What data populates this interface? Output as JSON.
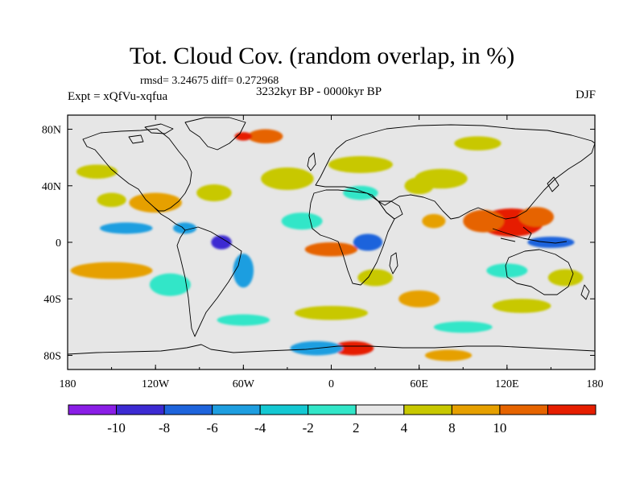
{
  "title": "Tot. Cloud Cov. (random overlap, in %)",
  "stats": "rmsd= 3.24675  diff= 0.272968",
  "experiment": "Expt = xQfVu-xqfua",
  "period": "3232kyr BP - 0000kyr BP",
  "season": "DJF",
  "map": {
    "projection": "cylindrical equidistant",
    "lon_range": [
      -180,
      180
    ],
    "lat_range": [
      -90,
      90
    ],
    "lon_ticks": [
      {
        "value": -180,
        "label": "180"
      },
      {
        "value": -120,
        "label": "120W"
      },
      {
        "value": -60,
        "label": "60W"
      },
      {
        "value": 0,
        "label": "0"
      },
      {
        "value": 60,
        "label": "60E"
      },
      {
        "value": 120,
        "label": "120E"
      },
      {
        "value": 180,
        "label": "180"
      }
    ],
    "lat_ticks": [
      {
        "value": 80,
        "label": "80N"
      },
      {
        "value": 40,
        "label": "40N"
      },
      {
        "value": 0,
        "label": "0"
      },
      {
        "value": -40,
        "label": "40S"
      },
      {
        "value": -80,
        "label": "80S"
      }
    ],
    "background_color": "#e6e6e6",
    "anomaly_patches": [
      {
        "lon": 123,
        "lat": 14,
        "rlon": 22,
        "rlat": 10,
        "class": 10
      },
      {
        "lon": 104,
        "lat": 15,
        "rlon": 14,
        "rlat": 8,
        "class": 9
      },
      {
        "lon": 140,
        "lat": 18,
        "rlon": 12,
        "rlat": 7,
        "class": 9
      },
      {
        "lon": 0,
        "lat": -5,
        "rlon": 18,
        "rlat": 5,
        "class": 9
      },
      {
        "lon": 15,
        "lat": -75,
        "rlon": 14,
        "rlat": 5,
        "class": 10
      },
      {
        "lon": -45,
        "lat": 75,
        "rlon": 12,
        "rlat": 5,
        "class": 9
      },
      {
        "lon": -60,
        "lat": 75,
        "rlon": 6,
        "rlat": 3,
        "class": 10
      },
      {
        "lon": -150,
        "lat": -20,
        "rlon": 28,
        "rlat": 6,
        "class": 8
      },
      {
        "lon": -120,
        "lat": 28,
        "rlon": 18,
        "rlat": 7,
        "class": 8
      },
      {
        "lon": -150,
        "lat": 30,
        "rlon": 10,
        "rlat": 5,
        "class": 7
      },
      {
        "lon": 70,
        "lat": 15,
        "rlon": 8,
        "rlat": 5,
        "class": 8
      },
      {
        "lon": 60,
        "lat": 40,
        "rlon": 10,
        "rlat": 6,
        "class": 7
      },
      {
        "lon": 60,
        "lat": -40,
        "rlon": 14,
        "rlat": 6,
        "class": 8
      },
      {
        "lon": 160,
        "lat": -25,
        "rlon": 12,
        "rlat": 6,
        "class": 7
      },
      {
        "lon": 80,
        "lat": -80,
        "rlon": 16,
        "rlat": 4,
        "class": 8
      },
      {
        "lon": -140,
        "lat": 10,
        "rlon": 18,
        "rlat": 4,
        "class": 3
      },
      {
        "lon": -100,
        "lat": 10,
        "rlon": 8,
        "rlat": 4,
        "class": 3
      },
      {
        "lon": -75,
        "lat": 0,
        "rlon": 7,
        "rlat": 5,
        "class": 1
      },
      {
        "lon": 25,
        "lat": 0,
        "rlon": 10,
        "rlat": 6,
        "class": 2
      },
      {
        "lon": 150,
        "lat": 0,
        "rlon": 16,
        "rlat": 4,
        "class": 2
      },
      {
        "lon": -10,
        "lat": -75,
        "rlon": 18,
        "rlat": 5,
        "class": 3
      },
      {
        "lon": -60,
        "lat": -20,
        "rlon": 7,
        "rlat": 12,
        "class": 3
      },
      {
        "lon": -110,
        "lat": -30,
        "rlon": 14,
        "rlat": 8,
        "class": 5
      },
      {
        "lon": -60,
        "lat": -55,
        "rlon": 18,
        "rlat": 4,
        "class": 5
      },
      {
        "lon": 20,
        "lat": 35,
        "rlon": 12,
        "rlat": 5,
        "class": 5
      },
      {
        "lon": 120,
        "lat": -20,
        "rlon": 14,
        "rlat": 5,
        "class": 5
      },
      {
        "lon": -20,
        "lat": 15,
        "rlon": 14,
        "rlat": 6,
        "class": 5
      },
      {
        "lon": 90,
        "lat": -60,
        "rlon": 20,
        "rlat": 4,
        "class": 5
      },
      {
        "lon": -30,
        "lat": 45,
        "rlon": 18,
        "rlat": 8,
        "class": 7
      },
      {
        "lon": 20,
        "lat": 55,
        "rlon": 22,
        "rlat": 6,
        "class": 7
      },
      {
        "lon": 75,
        "lat": 45,
        "rlon": 18,
        "rlat": 7,
        "class": 7
      },
      {
        "lon": -80,
        "lat": 35,
        "rlon": 12,
        "rlat": 6,
        "class": 7
      },
      {
        "lon": 30,
        "lat": -25,
        "rlon": 12,
        "rlat": 6,
        "class": 7
      },
      {
        "lon": 130,
        "lat": -45,
        "rlon": 20,
        "rlat": 5,
        "class": 7
      },
      {
        "lon": -160,
        "lat": 50,
        "rlon": 14,
        "rlat": 5,
        "class": 7
      },
      {
        "lon": 0,
        "lat": -50,
        "rlon": 25,
        "rlat": 5,
        "class": 7
      },
      {
        "lon": 100,
        "lat": 70,
        "rlon": 16,
        "rlat": 5,
        "class": 7
      }
    ]
  },
  "colorbar": {
    "colors": [
      "#8a1ee6",
      "#3c2ad2",
      "#1e64dc",
      "#1e9ee0",
      "#14c8d2",
      "#32e6c8",
      "#e6e6e6",
      "#c8c800",
      "#e6a000",
      "#e66400",
      "#e61e00"
    ],
    "labels": [
      "-10",
      "-8",
      "-6",
      "-4",
      "-2",
      "2",
      "4",
      "8",
      "10"
    ]
  }
}
